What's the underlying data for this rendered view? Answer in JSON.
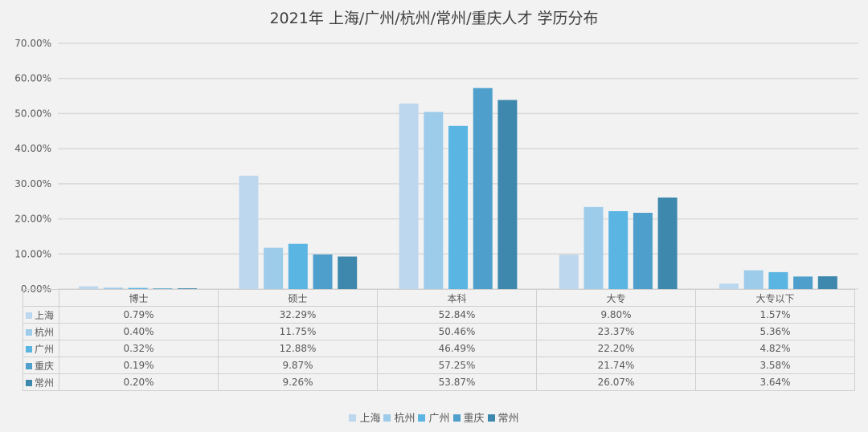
{
  "chart_data": {
    "type": "bar",
    "title": "2021年 上海/广州/杭州/常州/重庆人才 学历分布",
    "categories": [
      "博士",
      "硕士",
      "本科",
      "大专",
      "大专以下"
    ],
    "series": [
      {
        "name": "上海",
        "color": "#bdd7ee",
        "values": [
          0.79,
          32.29,
          52.84,
          9.8,
          1.57
        ],
        "labels": [
          "0.79%",
          "32.29%",
          "52.84%",
          "9.80%",
          "1.57%"
        ]
      },
      {
        "name": "杭州",
        "color": "#9dcbea",
        "values": [
          0.4,
          11.75,
          50.46,
          23.37,
          5.36
        ],
        "labels": [
          "0.40%",
          "11.75%",
          "50.46%",
          "23.37%",
          "5.36%"
        ]
      },
      {
        "name": "广州",
        "color": "#5ab5e2",
        "values": [
          0.32,
          12.88,
          46.49,
          22.2,
          4.82
        ],
        "labels": [
          "0.32%",
          "12.88%",
          "46.49%",
          "22.20%",
          "4.82%"
        ]
      },
      {
        "name": "重庆",
        "color": "#4e9fcc",
        "values": [
          0.19,
          9.87,
          57.25,
          21.74,
          3.58
        ],
        "labels": [
          "0.19%",
          "9.87%",
          "57.25%",
          "21.74%",
          "3.58%"
        ]
      },
      {
        "name": "常州",
        "color": "#3d88ac",
        "values": [
          0.2,
          9.26,
          53.87,
          26.07,
          3.64
        ],
        "labels": [
          "0.20%",
          "9.26%",
          "53.87%",
          "26.07%",
          "3.64%"
        ]
      }
    ],
    "ylim": [
      0,
      70
    ],
    "yticks": [
      "0.00%",
      "10.00%",
      "20.00%",
      "30.00%",
      "40.00%",
      "50.00%",
      "60.00%",
      "70.00%"
    ],
    "grid": true,
    "legend": "bottom",
    "data_table": true
  }
}
